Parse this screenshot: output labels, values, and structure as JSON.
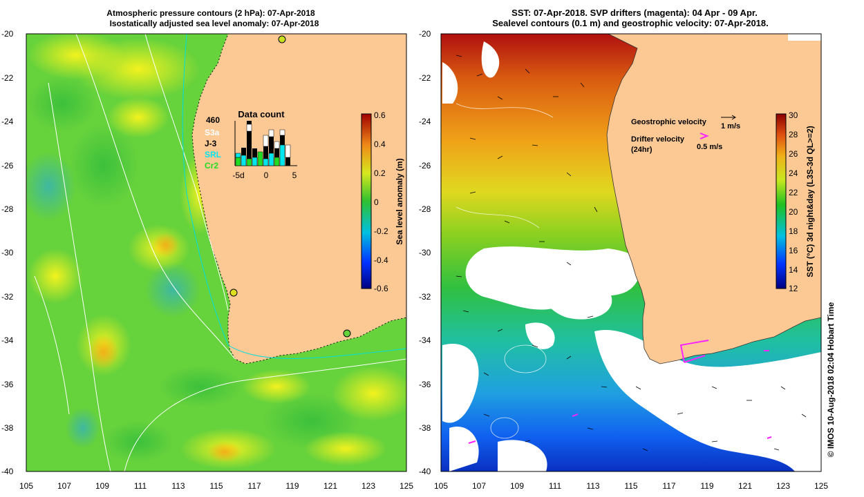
{
  "left_panel": {
    "title_line1": "Atmospheric pressure contours (2 hPa): 07-Apr-2018",
    "title_line2": "Isostatically adjusted sea level anomaly: 07-Apr-2018",
    "y_ticks": [
      "-20",
      "-22",
      "-24",
      "-26",
      "-28",
      "-30",
      "-32",
      "-34",
      "-36",
      "-38",
      "-40"
    ],
    "x_ticks": [
      "105",
      "107",
      "109",
      "111",
      "113",
      "115",
      "117",
      "119",
      "121",
      "123",
      "125"
    ],
    "colorbar": {
      "label": "Sea level anomaly (m)",
      "ticks": [
        "0.6",
        "0.4",
        "0.2",
        "0",
        "-0.2",
        "-0.4",
        "-0.6"
      ]
    },
    "data_count": {
      "title": "Data count",
      "max_value": "460",
      "legend": [
        {
          "name": "S3a",
          "color": "#ffffff"
        },
        {
          "name": "J-3",
          "color": "#000000"
        },
        {
          "name": "SRL",
          "color": "#00e5ee"
        },
        {
          "name": "Cr2",
          "color": "#22dd22"
        }
      ],
      "x_ticks": [
        "-5d",
        "0",
        "5"
      ]
    }
  },
  "right_panel": {
    "title_line1": "SST: 07-Apr-2018. SVP drifters (magenta): 04 Apr - 09 Apr.",
    "title_line2": "Sealevel contours (0.1 m) and geostrophic velocity: 07-Apr-2018.",
    "y_ticks": [
      "-20",
      "-22",
      "-24",
      "-26",
      "-28",
      "-30",
      "-32",
      "-34",
      "-36",
      "-38",
      "-40"
    ],
    "x_ticks": [
      "105",
      "107",
      "109",
      "111",
      "113",
      "115",
      "117",
      "119",
      "121",
      "123",
      "125"
    ],
    "geostrophic_label": "Geostrophic velocity",
    "geostrophic_scale": "1 m/s",
    "drifter_label_1": "Drifter velocity",
    "drifter_label_2": "(24hr)",
    "drifter_scale": "0.5 m/s",
    "colorbar": {
      "label": "SST (°C) 3d night&day (L3S-3d QL>=2)",
      "ticks": [
        "30",
        "28",
        "26",
        "24",
        "22",
        "20",
        "18",
        "16",
        "14",
        "12"
      ]
    }
  },
  "credit": "© IMOS 10-Aug-2018 02:04 Hobart Time",
  "colors": {
    "land": "#fcc995",
    "drifter": "#ff22ff"
  }
}
